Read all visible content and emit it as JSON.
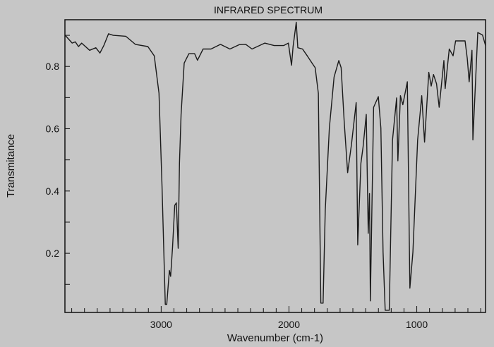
{
  "chart_data": {
    "type": "line",
    "title": "INFRARED SPECTRUM",
    "xlabel": "Wavenumber (cm-1)",
    "ylabel": "Transmitance",
    "xlim": [
      3753,
      462
    ],
    "ylim": [
      0.01,
      0.95
    ],
    "x_reversed": true,
    "x_ticks": [
      3000,
      2000,
      1000
    ],
    "y_ticks": [
      0.2,
      0.4,
      0.6,
      0.8
    ],
    "grid": false,
    "line_color": "#1a1a1a",
    "background_color": "#c6c6c6",
    "x": [
      3753,
      3696,
      3672,
      3647,
      3622,
      3560,
      3511,
      3479,
      3449,
      3412,
      3375,
      3277,
      3202,
      3104,
      3054,
      3017,
      2993,
      2968,
      2956,
      2936,
      2926,
      2911,
      2894,
      2881,
      2867,
      2857,
      2844,
      2820,
      2783,
      2738,
      2716,
      2672,
      2610,
      2536,
      2462,
      2388,
      2338,
      2289,
      2190,
      2116,
      2042,
      2005,
      1980,
      1968,
      1943,
      1931,
      1894,
      1857,
      1820,
      1795,
      1770,
      1751,
      1733,
      1716,
      1684,
      1647,
      1610,
      1592,
      1568,
      1541,
      1511,
      1474,
      1462,
      1437,
      1420,
      1395,
      1380,
      1370,
      1363,
      1338,
      1301,
      1281,
      1264,
      1247,
      1215,
      1190,
      1158,
      1148,
      1128,
      1109,
      1074,
      1054,
      1030,
      993,
      961,
      939,
      906,
      887,
      869,
      845,
      825,
      788,
      778,
      746,
      716,
      696,
      622,
      605,
      590,
      568,
      561,
      523,
      486,
      462
    ],
    "y": [
      0.901,
      0.875,
      0.879,
      0.864,
      0.875,
      0.852,
      0.86,
      0.843,
      0.867,
      0.905,
      0.9,
      0.897,
      0.871,
      0.864,
      0.834,
      0.714,
      0.414,
      0.036,
      0.036,
      0.145,
      0.126,
      0.22,
      0.354,
      0.362,
      0.216,
      0.489,
      0.646,
      0.811,
      0.841,
      0.841,
      0.82,
      0.856,
      0.856,
      0.871,
      0.856,
      0.87,
      0.871,
      0.856,
      0.875,
      0.867,
      0.867,
      0.875,
      0.804,
      0.864,
      0.942,
      0.86,
      0.856,
      0.834,
      0.811,
      0.796,
      0.714,
      0.04,
      0.04,
      0.339,
      0.602,
      0.766,
      0.819,
      0.796,
      0.624,
      0.459,
      0.549,
      0.684,
      0.227,
      0.489,
      0.542,
      0.646,
      0.264,
      0.392,
      0.047,
      0.669,
      0.703,
      0.602,
      0.204,
      0.017,
      0.017,
      0.564,
      0.699,
      0.497,
      0.706,
      0.677,
      0.751,
      0.088,
      0.204,
      0.564,
      0.706,
      0.557,
      0.781,
      0.737,
      0.774,
      0.744,
      0.669,
      0.819,
      0.729,
      0.856,
      0.834,
      0.882,
      0.882,
      0.826,
      0.751,
      0.852,
      0.564,
      0.909,
      0.901,
      0.867
    ]
  }
}
